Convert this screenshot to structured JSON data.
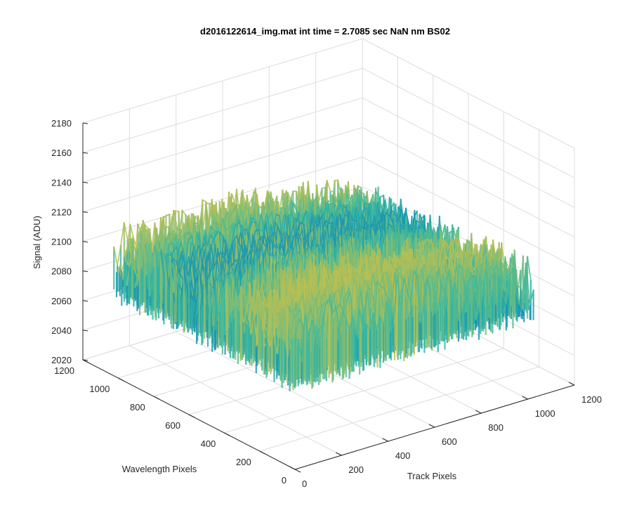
{
  "chart_data": {
    "type": "surface",
    "title": "d2016122614_img.mat int time = 2.7085 sec  NaN nm BS02",
    "xlabel": "Track Pixels",
    "ylabel": "Wavelength Pixels",
    "zlabel": "Signal (ADU)",
    "xlim": [
      0,
      1200
    ],
    "ylim": [
      0,
      1200
    ],
    "zlim": [
      2020,
      2180
    ],
    "x_ticks": [
      "0",
      "200",
      "400",
      "600",
      "800",
      "1000",
      "1200"
    ],
    "y_ticks": [
      "0",
      "200",
      "400",
      "600",
      "800",
      "1000",
      "1200"
    ],
    "z_ticks": [
      "2020",
      "2040",
      "2060",
      "2080",
      "2100",
      "2120",
      "2140",
      "2160",
      "2180"
    ],
    "grid": true,
    "colormap": "parula",
    "surface_extent": {
      "x": [
        0,
        1024
      ],
      "y": [
        0,
        1024
      ]
    },
    "signal_mean_approx": 2105,
    "signal_range_approx": [
      2030,
      2175
    ],
    "colors": {
      "low": "#0072bd",
      "mid": "#33b8a3",
      "high": "#f2c230"
    }
  }
}
